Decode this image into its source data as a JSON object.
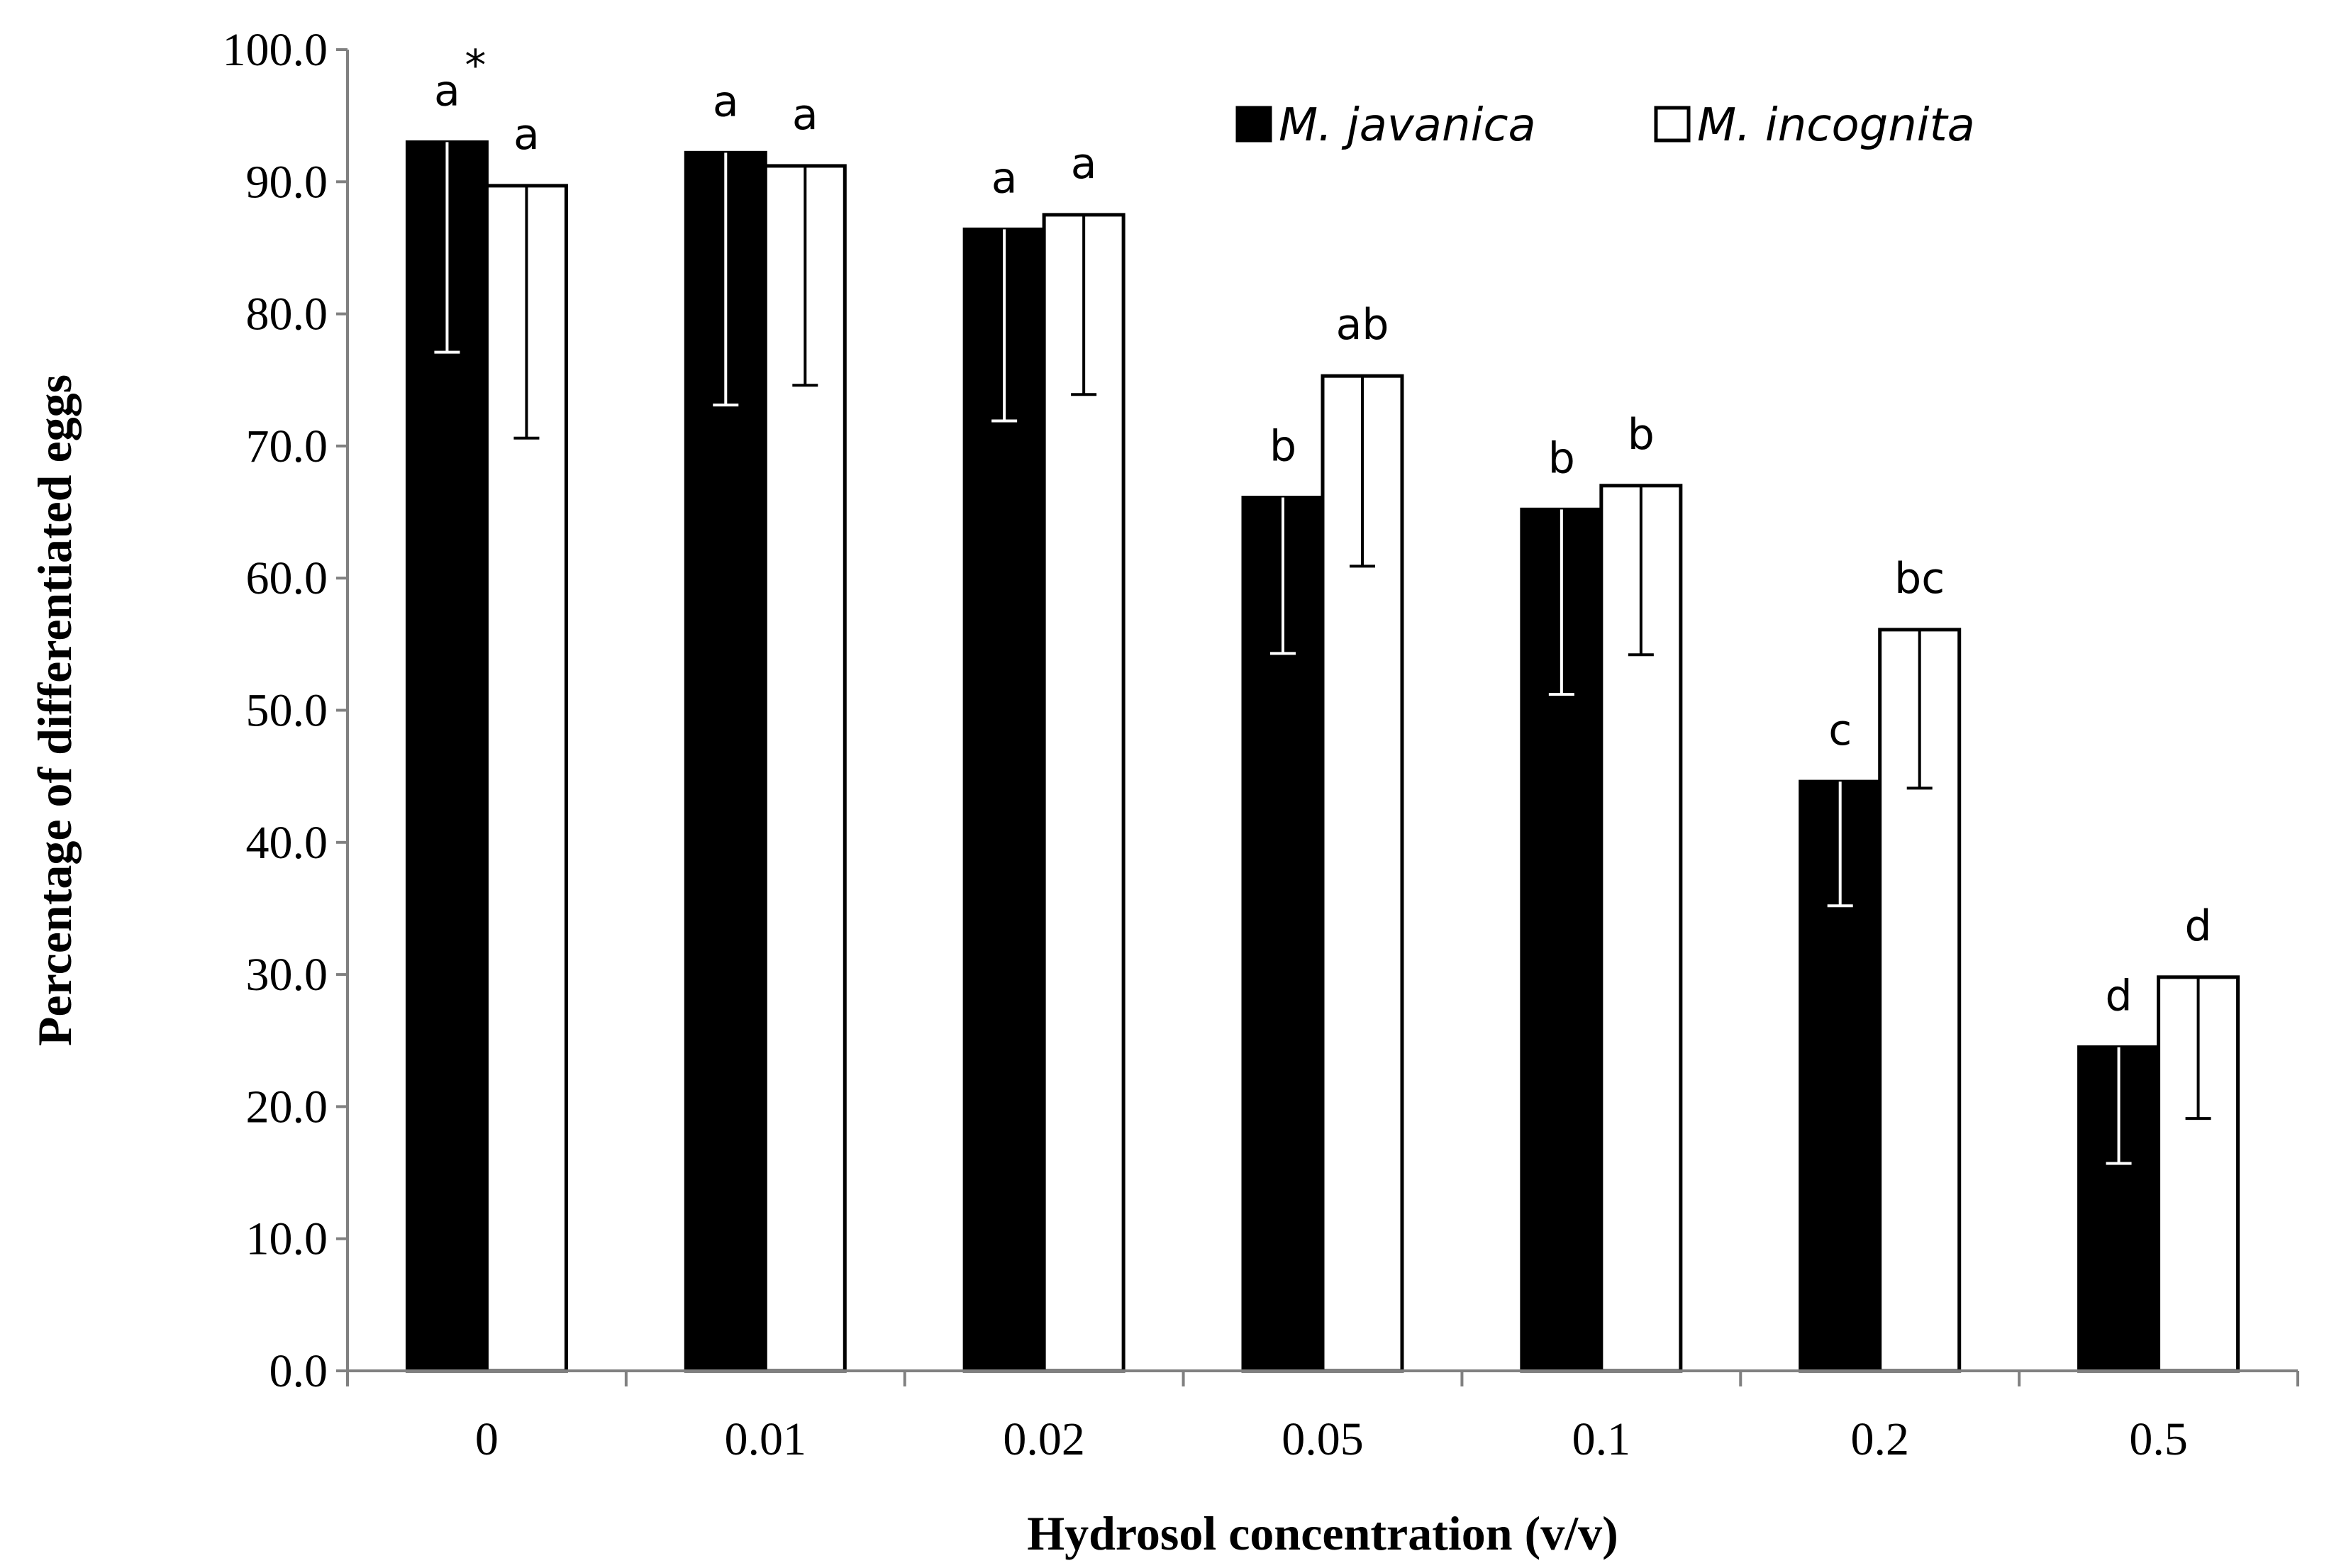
{
  "chart_data": {
    "type": "bar",
    "title": "",
    "xlabel": "Hydrosol concentration (v/v)",
    "ylabel": "Percentage of differentiated eggs",
    "ylim": [
      0,
      100
    ],
    "yticks": [
      "0.0",
      "10.0",
      "20.0",
      "30.0",
      "40.0",
      "50.0",
      "60.0",
      "70.0",
      "80.0",
      "90.0",
      "100.0"
    ],
    "categories": [
      "0",
      "0.01",
      "0.02",
      "0.05",
      "0.1",
      "0.2",
      "0.5"
    ],
    "legend_position": "top-right",
    "series": [
      {
        "name": "M. javanica",
        "fill": "#000000",
        "values": [
          93.0,
          92.2,
          86.4,
          66.1,
          65.2,
          44.6,
          24.5
        ],
        "error_low": [
          77.1,
          73.1,
          71.9,
          54.3,
          51.2,
          35.2,
          15.7
        ],
        "labels": [
          "a",
          "a",
          "a",
          "b",
          "b",
          "c",
          "d"
        ]
      },
      {
        "name": "M. incognita",
        "fill": "#ffffff",
        "values": [
          89.7,
          91.2,
          87.5,
          75.3,
          67.0,
          56.1,
          29.8
        ],
        "error_low": [
          70.6,
          74.6,
          73.9,
          60.9,
          54.2,
          44.1,
          19.1
        ],
        "labels": [
          "a",
          "a",
          "a",
          "ab",
          "b",
          "bc",
          "d"
        ]
      }
    ],
    "annotation_mark": "*"
  }
}
